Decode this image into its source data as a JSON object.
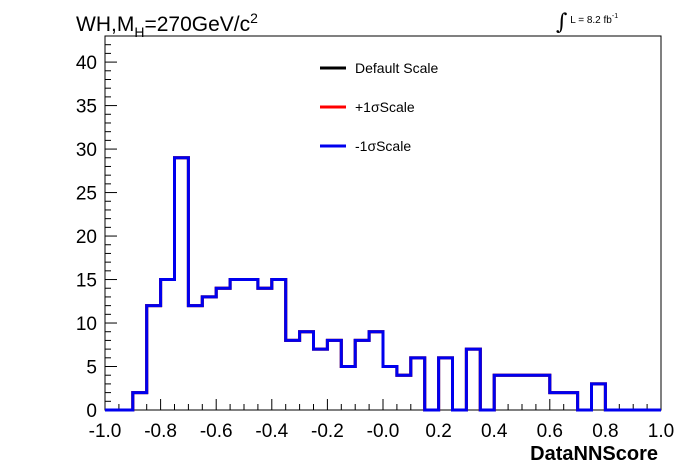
{
  "title": {
    "main": "WH,M",
    "sub": "H",
    "rest": "=270GeV/c",
    "sup": "2"
  },
  "lumi": {
    "integral": "∫",
    "text": "L = 8.2 fb",
    "sup": "-1"
  },
  "colors": {
    "default": "#000000",
    "plus": "#ff0000",
    "minus": "#0000ee"
  },
  "chart_data": {
    "type": "line",
    "xlabel": "DataNNScore",
    "ylabel": "",
    "xlim": [
      -1.0,
      1.0
    ],
    "ylim": [
      0,
      43
    ],
    "xticks": [
      "-1.0",
      "-0.8",
      "-0.6",
      "-0.4",
      "-0.2",
      "-0.0",
      "0.2",
      "0.4",
      "0.6",
      "0.8",
      "1.0"
    ],
    "yticks": [
      "0",
      "5",
      "10",
      "15",
      "20",
      "25",
      "30",
      "35",
      "40"
    ],
    "bin_edges": [
      -1.0,
      -0.95,
      -0.9,
      -0.85,
      -0.8,
      -0.75,
      -0.7,
      -0.65,
      -0.6,
      -0.55,
      -0.5,
      -0.45,
      -0.4,
      -0.35,
      -0.3,
      -0.25,
      -0.2,
      -0.15,
      -0.1,
      -0.05,
      0.0,
      0.05,
      0.1,
      0.15,
      0.2,
      0.25,
      0.3,
      0.35,
      0.4,
      0.45,
      0.5,
      0.55,
      0.6,
      0.65,
      0.7,
      0.75,
      0.8,
      0.85,
      0.9,
      0.95,
      1.0
    ],
    "legend_position": "top-center",
    "series": [
      {
        "name": "Default Scale",
        "color": "#000000",
        "values": [
          0,
          0,
          2,
          12,
          15,
          29,
          12,
          13,
          14,
          15,
          15,
          14,
          15,
          8,
          9,
          7,
          8,
          5,
          8,
          9,
          5,
          4,
          6,
          0,
          6,
          0,
          7,
          0,
          4,
          4,
          4,
          4,
          2,
          2,
          0,
          3,
          0,
          0,
          0,
          0
        ]
      },
      {
        "name": "+1σScale",
        "color": "#ff0000",
        "values": [
          0,
          0,
          2,
          12,
          15,
          29,
          12,
          13,
          14,
          15,
          15,
          14,
          15,
          8,
          9,
          7,
          8,
          5,
          8,
          9,
          5,
          4,
          6,
          0,
          6,
          0,
          7,
          0,
          4,
          4,
          4,
          4,
          2,
          2,
          0,
          3,
          0,
          0,
          0,
          0
        ]
      },
      {
        "name": "-1σScale",
        "color": "#0000ee",
        "values": [
          0,
          0,
          2,
          12,
          15,
          29,
          12,
          13,
          14,
          15,
          15,
          14,
          15,
          8,
          9,
          7,
          8,
          5,
          8,
          9,
          5,
          4,
          6,
          0,
          6,
          0,
          7,
          0,
          4,
          4,
          4,
          4,
          2,
          2,
          0,
          3,
          0,
          0,
          0,
          0
        ]
      }
    ]
  }
}
